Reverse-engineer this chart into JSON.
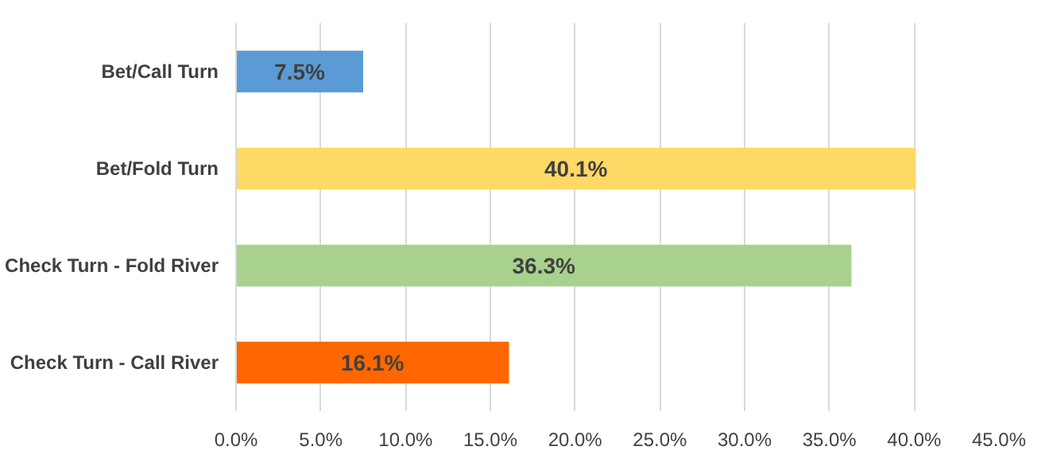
{
  "chart_data": {
    "type": "bar",
    "orientation": "horizontal",
    "categories": [
      "Bet/Call Turn",
      "Bet/Fold Turn",
      "Check Turn - Fold River",
      "Check Turn - Call River"
    ],
    "values": [
      7.5,
      40.1,
      36.3,
      16.1
    ],
    "colors": [
      "#5b9bd5",
      "#ffd966",
      "#a9d18e",
      "#ff6600"
    ],
    "value_labels": [
      "7.5%",
      "40.1%",
      "36.3%",
      "16.1%"
    ],
    "xlim": [
      0,
      45
    ],
    "xticks": [
      {
        "value": 0,
        "label": "0.0%"
      },
      {
        "value": 5,
        "label": "5.0%"
      },
      {
        "value": 10,
        "label": "10.0%"
      },
      {
        "value": 15,
        "label": "15.0%"
      },
      {
        "value": 20,
        "label": "20.0%"
      },
      {
        "value": 25,
        "label": "25.0%"
      },
      {
        "value": 30,
        "label": "30.0%"
      },
      {
        "value": 35,
        "label": "35.0%"
      },
      {
        "value": 40,
        "label": "40.0%"
      },
      {
        "value": 45,
        "label": "45.0%"
      }
    ],
    "grid": "x"
  }
}
